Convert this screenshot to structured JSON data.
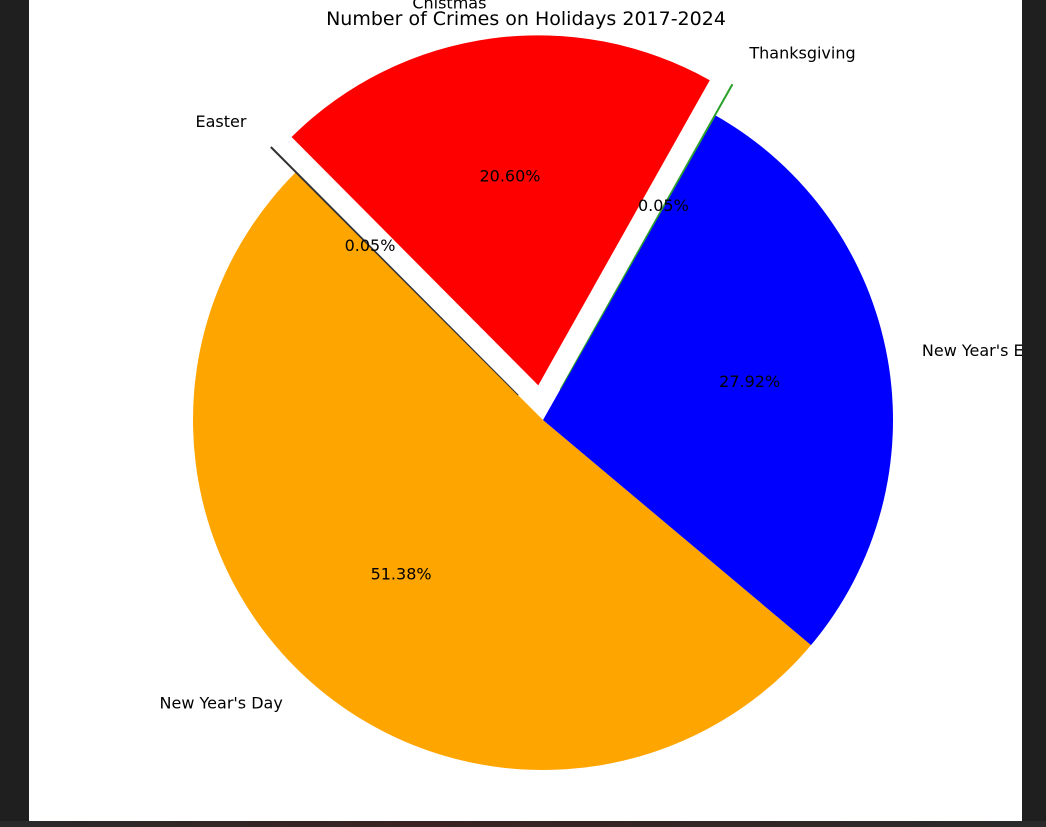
{
  "chart_data": {
    "type": "pie",
    "title": "Number of Crimes on Holidays 2017-2024",
    "start_angle_deg": 135,
    "counterclock": true,
    "slices": [
      {
        "label": "New Year's Day",
        "percent": 51.38,
        "percent_label": "51.38%",
        "color": "#FFA500",
        "explode": 0
      },
      {
        "label": "New Year's Eve",
        "percent": 27.92,
        "percent_label": "27.92%",
        "color": "#0000FF",
        "explode": 0
      },
      {
        "label": "Thanksgiving",
        "percent": 0.05,
        "percent_label": "0.05%",
        "color": "#2CA02C",
        "explode": 0.1
      },
      {
        "label": "Chistmas",
        "percent": 20.6,
        "percent_label": "20.60%",
        "color": "#FF0000",
        "explode": 0.1
      },
      {
        "label": "Easter",
        "percent": 0.05,
        "percent_label": "0.05%",
        "color": "#333333",
        "explode": 0.1
      }
    ]
  }
}
